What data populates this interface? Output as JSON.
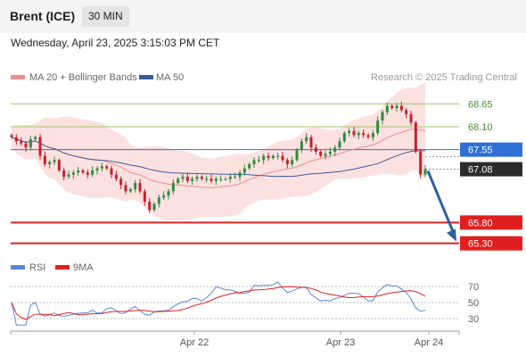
{
  "header": {
    "title": "Brent (ICE)",
    "timeframe": "30 MIN"
  },
  "datetime": "Wednesday, April 23, 2025 3:15:03 PM CET",
  "legend": {
    "ma20": "MA 20 + Bollinger Bands",
    "ma50": "MA 50",
    "credit": "Research © 2025 Trading Central"
  },
  "rsi_legend": {
    "rsi": "RSI",
    "ma": "9MA"
  },
  "colors": {
    "ma20": "#f08c8c",
    "band": "#fcdcdc",
    "ma50": "#3c5a99",
    "up": "#2e8b3a",
    "down": "#c8202a",
    "hline_green": "#9ec46a",
    "blue_line": "#2f6fd6",
    "red_line": "#e02020",
    "rsi": "#5b87d8",
    "rsi_ma": "#e02020",
    "forecast": "#2f5f9e"
  },
  "chart_data": [
    {
      "type": "candlestick",
      "price_range": [
        65.1,
        69.0
      ],
      "x": [
        "Apr 22",
        "Apr 23",
        "Apr 24"
      ],
      "levels": [
        {
          "value": 68.65,
          "label": "68.65",
          "kind": "resistance"
        },
        {
          "value": 68.1,
          "label": "68.10",
          "kind": "resistance"
        },
        {
          "value": 67.55,
          "label": "67.55",
          "kind": "pivot"
        },
        {
          "value": 65.8,
          "label": "65.80",
          "kind": "support"
        },
        {
          "value": 65.3,
          "label": "65.30",
          "kind": "support"
        }
      ],
      "current_price": {
        "value": 67.08,
        "label": "67.08"
      },
      "forecast_target": 65.3,
      "closes": [
        67.85,
        67.75,
        67.7,
        67.6,
        67.8,
        67.85,
        67.4,
        67.2,
        67.25,
        67.3,
        67.05,
        66.9,
        66.95,
        67.0,
        67.05,
        67.0,
        66.95,
        67.05,
        67.1,
        67.15,
        67.1,
        66.95,
        66.85,
        66.7,
        66.55,
        66.6,
        66.75,
        66.55,
        66.3,
        66.1,
        66.25,
        66.4,
        66.45,
        66.55,
        66.75,
        66.85,
        66.9,
        66.8,
        66.85,
        66.9,
        66.85,
        66.85,
        66.8,
        66.85,
        66.85,
        66.85,
        66.9,
        66.9,
        67.0,
        67.1,
        67.2,
        67.3,
        67.3,
        67.4,
        67.35,
        67.4,
        67.4,
        67.3,
        67.2,
        67.3,
        67.55,
        67.75,
        67.85,
        67.6,
        67.5,
        67.4,
        67.45,
        67.5,
        67.6,
        67.75,
        67.95,
        68.0,
        67.9,
        67.95,
        67.9,
        67.85,
        67.95,
        68.25,
        68.45,
        68.6,
        68.55,
        68.6,
        68.5,
        68.4,
        68.2,
        67.5,
        66.95,
        67.08
      ]
    },
    {
      "type": "line",
      "title": "RSI",
      "yticks": [
        70,
        50,
        30
      ],
      "y_range": [
        20,
        80
      ]
    }
  ]
}
